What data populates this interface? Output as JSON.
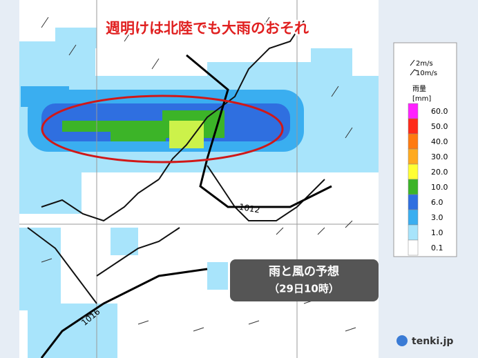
{
  "title": "週明けは北陸でも大雨のおそれ",
  "caption": {
    "title": "雨と風の予想",
    "time": "（29日10時）"
  },
  "legend": {
    "wind": [
      "2m/s",
      "10m/s"
    ],
    "rain_title": "雨量",
    "rain_unit": "[mm]",
    "levels": [
      {
        "label": "60.0",
        "color": "#ff22ff"
      },
      {
        "label": "50.0",
        "color": "#ff2a1a"
      },
      {
        "label": "40.0",
        "color": "#ff7a10"
      },
      {
        "label": "30.0",
        "color": "#ffaa20"
      },
      {
        "label": "20.0",
        "color": "#ffff33"
      },
      {
        "label": "10.0",
        "color": "#3cb428"
      },
      {
        "label": "6.0",
        "color": "#2f6fe0"
      },
      {
        "label": "3.0",
        "color": "#3aaef0"
      },
      {
        "label": "1.0",
        "color": "#a8e4fb"
      },
      {
        "label": "0.1",
        "color": "#ffffff"
      }
    ]
  },
  "isobars": [
    {
      "label": "1012"
    },
    {
      "label": "1016"
    }
  ],
  "logo": "tenki.jp"
}
